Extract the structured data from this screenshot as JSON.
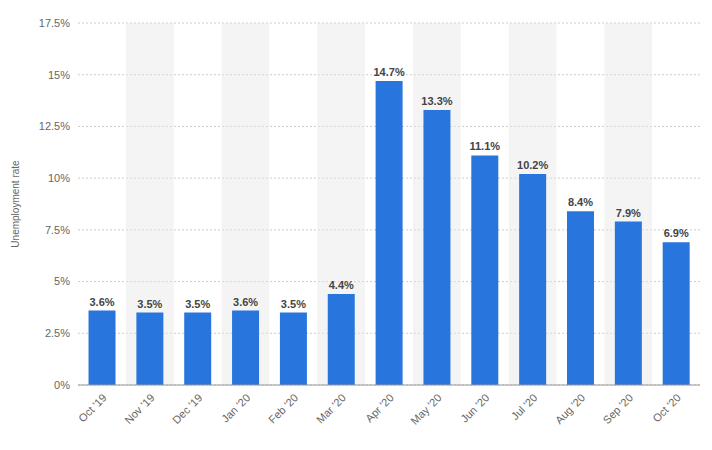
{
  "chart_data": {
    "type": "bar",
    "ylabel": "Unemployment rate",
    "categories": [
      "Oct '19",
      "Nov '19",
      "Dec '19",
      "Jan '20",
      "Feb '20",
      "Mar '20",
      "Apr '20",
      "May '20",
      "Jun '20",
      "Jul '20",
      "Aug '20",
      "Sep '20",
      "Oct '20"
    ],
    "values": [
      3.6,
      3.5,
      3.5,
      3.6,
      3.5,
      4.4,
      14.7,
      13.3,
      11.1,
      10.2,
      8.4,
      7.9,
      6.9
    ],
    "value_labels": [
      "3.6%",
      "3.5%",
      "3.5%",
      "3.6%",
      "3.5%",
      "4.4%",
      "14.7%",
      "13.3%",
      "11.1%",
      "10.2%",
      "8.4%",
      "7.9%",
      "6.9%"
    ],
    "color": "#2876dd",
    "ylim": [
      0,
      17.5
    ],
    "yticks": [
      {
        "value": 0,
        "label": "0%"
      },
      {
        "value": 2.5,
        "label": "2.5%"
      },
      {
        "value": 5,
        "label": "5%"
      },
      {
        "value": 7.5,
        "label": "7.5%"
      },
      {
        "value": 10,
        "label": "10%"
      },
      {
        "value": 12.5,
        "label": "12.5%"
      },
      {
        "value": 15,
        "label": "15%"
      },
      {
        "value": 17.5,
        "label": "17.5%"
      }
    ],
    "grid": true,
    "data_labels": true
  }
}
